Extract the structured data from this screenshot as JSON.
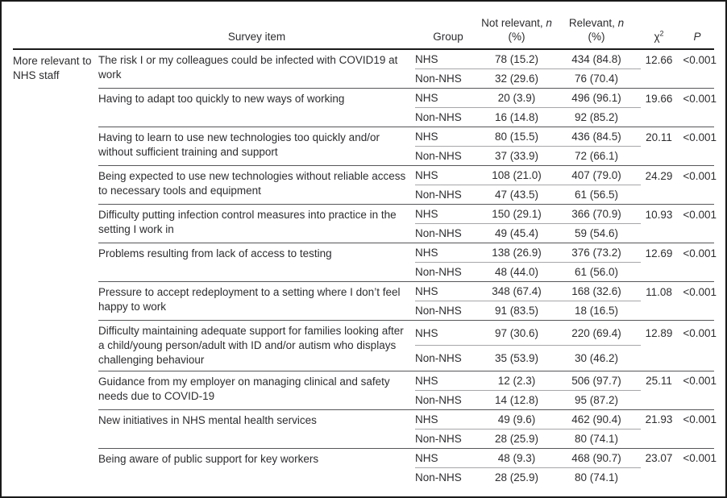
{
  "table": {
    "category_label": "More relevant to NHS staff",
    "header": {
      "survey_item": "Survey item",
      "group": "Group",
      "not_relevant_pre": "Not relevant, ",
      "not_relevant_n": "n",
      "not_relevant_pct": "(%)",
      "relevant_pre": "Relevant, ",
      "relevant_n": "n",
      "relevant_pct": "(%)",
      "chi": "χ",
      "chi_sup": "2",
      "p": "P"
    },
    "group_labels": {
      "nhs": "NHS",
      "non_nhs": "Non-NHS"
    },
    "items": [
      {
        "text": "The risk I or my colleagues could be infected with COVID19 at work",
        "nhs": {
          "not_relevant": "78 (15.2)",
          "relevant": "434 (84.8)",
          "chi2": "12.66",
          "p": "<0.001"
        },
        "non_nhs": {
          "not_relevant": "32 (29.6)",
          "relevant": "76 (70.4)"
        }
      },
      {
        "text": "Having to adapt too quickly to new ways of working",
        "nhs": {
          "not_relevant": "20 (3.9)",
          "relevant": "496 (96.1)",
          "chi2": "19.66",
          "p": "<0.001"
        },
        "non_nhs": {
          "not_relevant": "16 (14.8)",
          "relevant": "92 (85.2)"
        }
      },
      {
        "text": "Having to learn to use new technologies too quickly and/or without sufficient training and support",
        "nhs": {
          "not_relevant": "80 (15.5)",
          "relevant": "436 (84.5)",
          "chi2": "20.11",
          "p": "<0.001"
        },
        "non_nhs": {
          "not_relevant": "37 (33.9)",
          "relevant": "72 (66.1)"
        }
      },
      {
        "text": "Being expected to use new technologies without reliable access to necessary tools and equipment",
        "nhs": {
          "not_relevant": "108 (21.0)",
          "relevant": "407 (79.0)",
          "chi2": "24.29",
          "p": "<0.001"
        },
        "non_nhs": {
          "not_relevant": "47 (43.5)",
          "relevant": "61 (56.5)"
        }
      },
      {
        "text": "Difficulty putting infection control measures into practice in the setting I work in",
        "nhs": {
          "not_relevant": "150 (29.1)",
          "relevant": "366 (70.9)",
          "chi2": "10.93",
          "p": "<0.001"
        },
        "non_nhs": {
          "not_relevant": "49 (45.4)",
          "relevant": "59 (54.6)"
        }
      },
      {
        "text": "Problems resulting from lack of access to testing",
        "nhs": {
          "not_relevant": "138 (26.9)",
          "relevant": "376 (73.2)",
          "chi2": "12.69",
          "p": "<0.001"
        },
        "non_nhs": {
          "not_relevant": "48 (44.0)",
          "relevant": "61 (56.0)"
        }
      },
      {
        "text": "Pressure to accept redeployment to a setting where I don’t feel happy to work",
        "nhs": {
          "not_relevant": "348 (67.4)",
          "relevant": "168 (32.6)",
          "chi2": "11.08",
          "p": "<0.001"
        },
        "non_nhs": {
          "not_relevant": "91 (83.5)",
          "relevant": "18 (16.5)"
        }
      },
      {
        "text": "Difficulty maintaining adequate support for families looking after a child/young person/adult with ID and/or autism who displays challenging behaviour",
        "nhs": {
          "not_relevant": "97 (30.6)",
          "relevant": "220 (69.4)",
          "chi2": "12.89",
          "p": "<0.001"
        },
        "non_nhs": {
          "not_relevant": "35 (53.9)",
          "relevant": "30 (46.2)"
        }
      },
      {
        "text": "Guidance from my employer on managing clinical and safety needs due to COVID-19",
        "nhs": {
          "not_relevant": "12 (2.3)",
          "relevant": "506 (97.7)",
          "chi2": "25.11",
          "p": "<0.001"
        },
        "non_nhs": {
          "not_relevant": "14 (12.8)",
          "relevant": "95 (87.2)"
        }
      },
      {
        "text": "New initiatives in NHS mental health services",
        "nhs": {
          "not_relevant": "49 (9.6)",
          "relevant": "462 (90.4)",
          "chi2": "21.93",
          "p": "<0.001"
        },
        "non_nhs": {
          "not_relevant": "28 (25.9)",
          "relevant": "80 (74.1)"
        }
      },
      {
        "text": "Being aware of public support for key workers",
        "nhs": {
          "not_relevant": "48 (9.3)",
          "relevant": "468 (90.7)",
          "chi2": "23.07",
          "p": "<0.001"
        },
        "non_nhs": {
          "not_relevant": "28 (25.9)",
          "relevant": "80 (74.1)"
        }
      }
    ]
  },
  "colors": {
    "text": "#2d2d30",
    "rule_header": "#1a1a1a",
    "rule_item_separator": "#565659",
    "rule_inner_gray": "#a6a6a9",
    "frame": "#1a1a1a",
    "background": "#ffffff"
  }
}
